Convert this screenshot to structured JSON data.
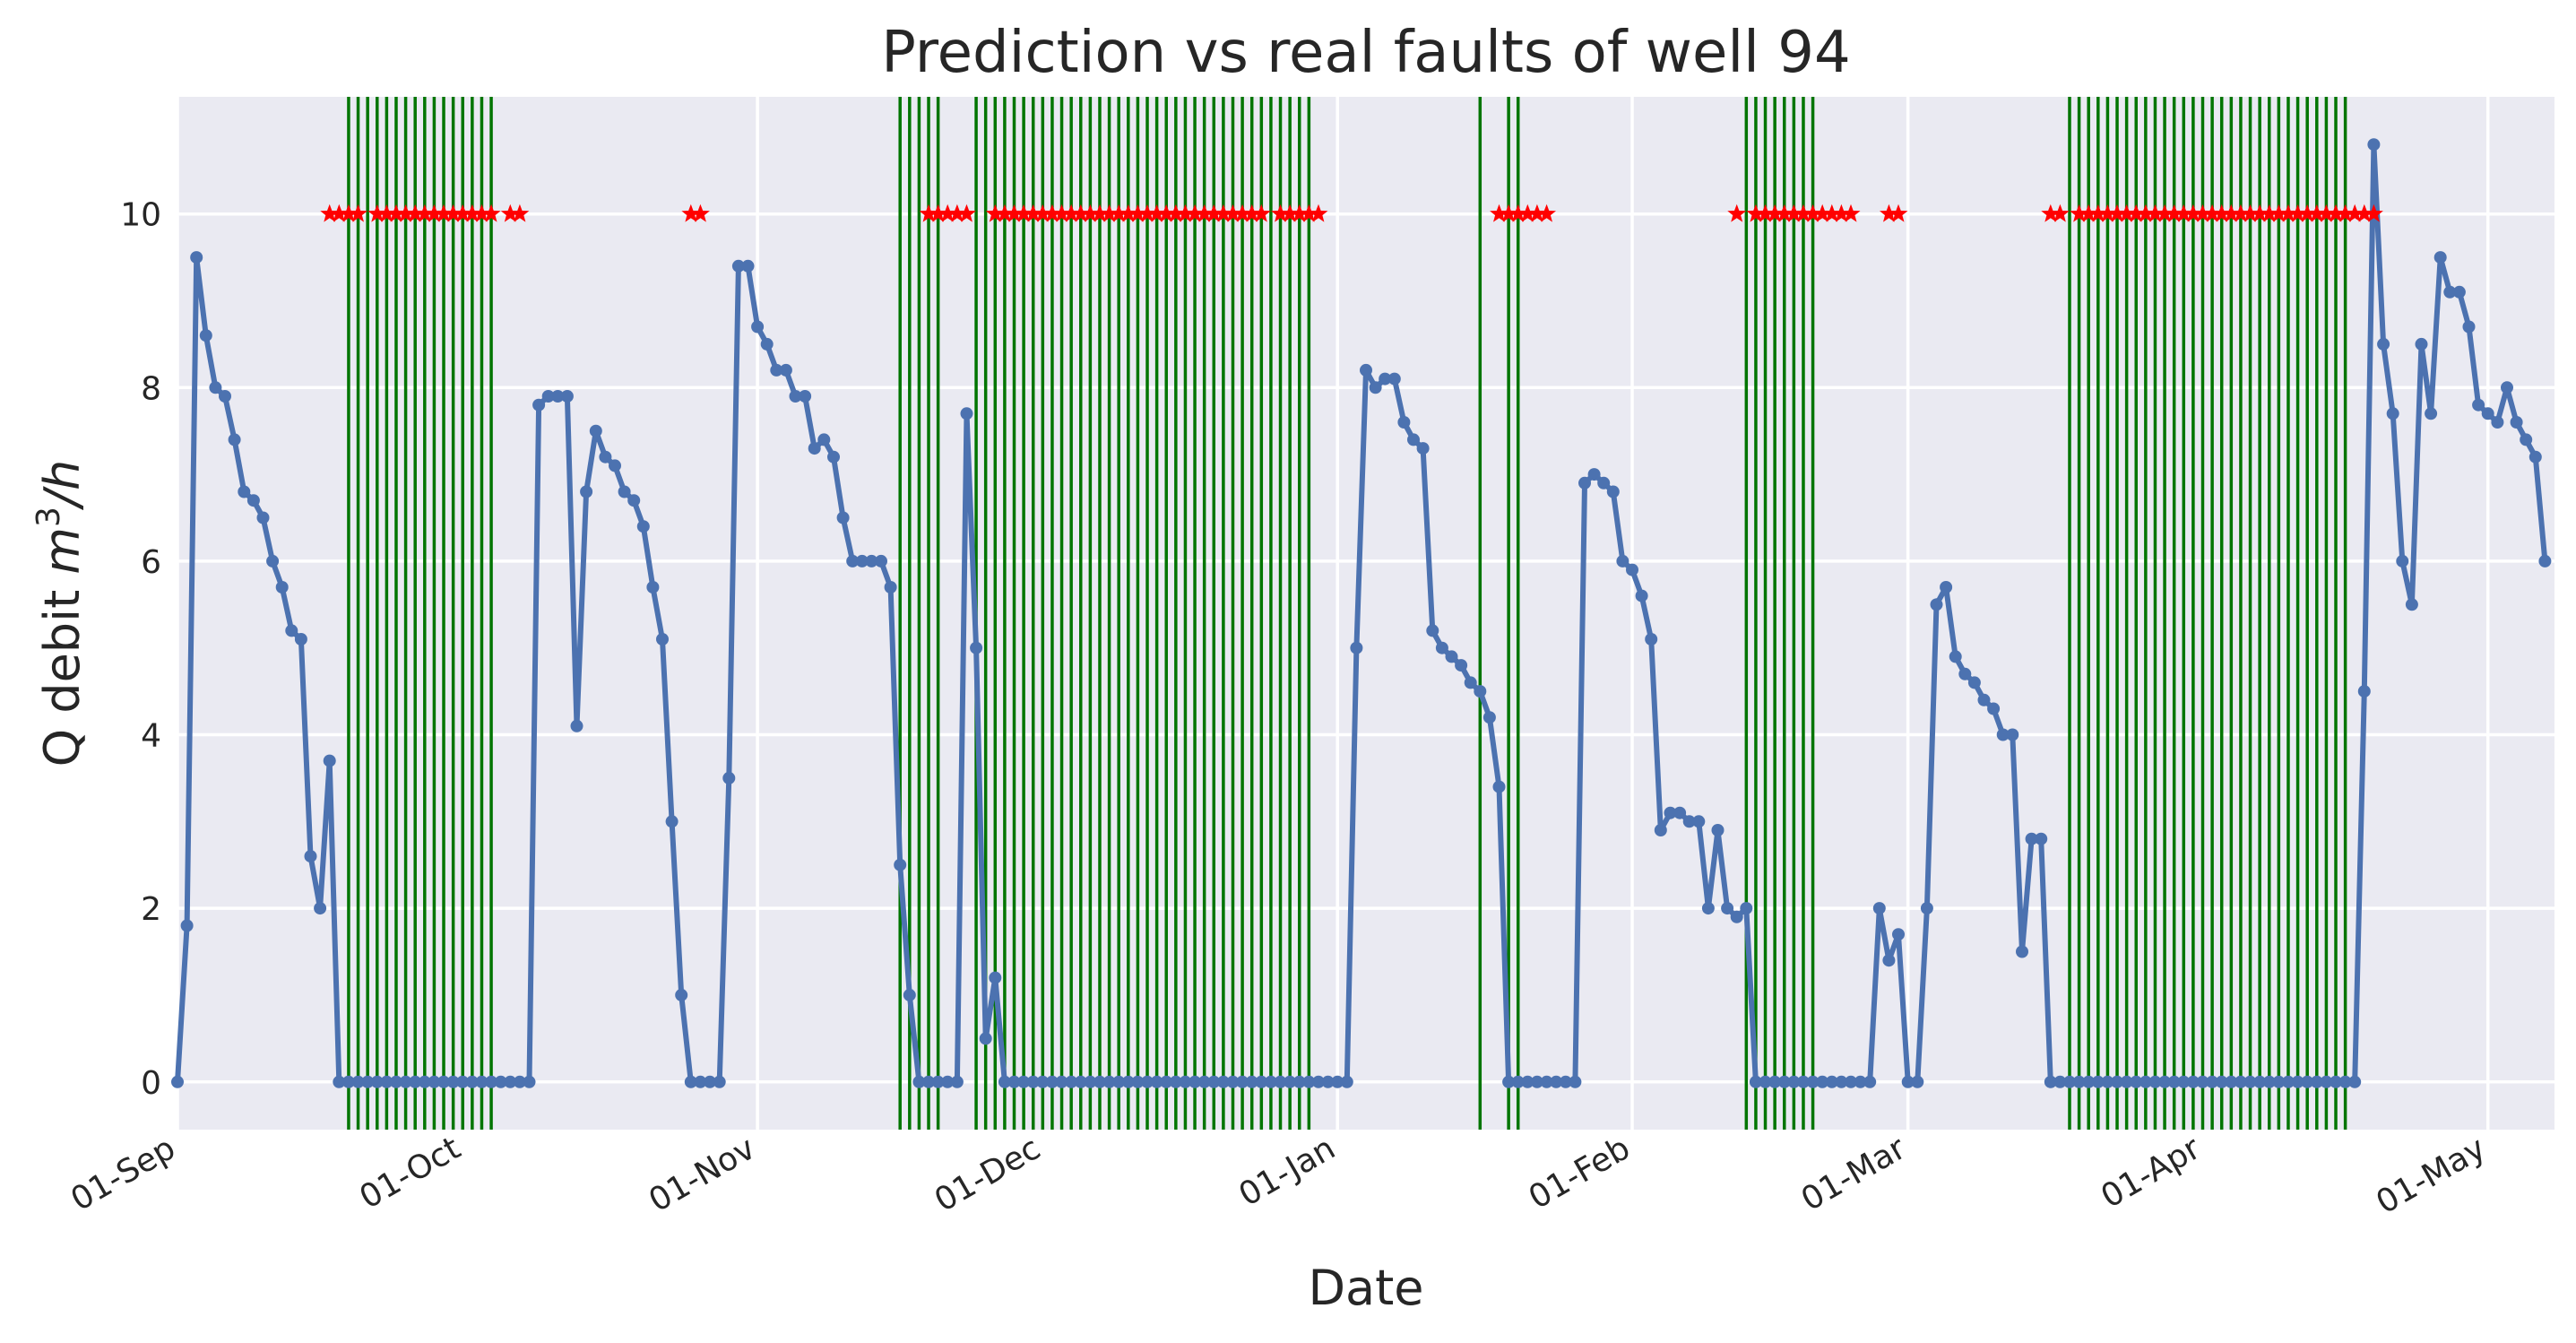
{
  "chart_data": {
    "type": "line",
    "title": "Prediction vs real faults of well 94",
    "xlabel": "Date",
    "ylabel": "Q debit m³/h",
    "ylabel_parts": {
      "text": "Q debit ",
      "unit_base_m": "m",
      "unit_exp": "3",
      "unit_rest": "/h"
    },
    "xlim": [
      "2019-09-01",
      "2020-05-08"
    ],
    "ylim": [
      -0.55,
      11.35
    ],
    "yticks": [
      0,
      2,
      4,
      6,
      8,
      10
    ],
    "xticks": [
      {
        "date": "2019-09-01",
        "label": "01-Sep"
      },
      {
        "date": "2019-10-01",
        "label": "01-Oct"
      },
      {
        "date": "2019-11-01",
        "label": "01-Nov"
      },
      {
        "date": "2019-12-01",
        "label": "01-Dec"
      },
      {
        "date": "2020-01-01",
        "label": "01-Jan"
      },
      {
        "date": "2020-02-01",
        "label": "01-Feb"
      },
      {
        "date": "2020-03-01",
        "label": "01-Mar"
      },
      {
        "date": "2020-04-01",
        "label": "01-Apr"
      },
      {
        "date": "2020-05-01",
        "label": "01-May"
      }
    ],
    "grid": true,
    "colors": {
      "background": "#eaeaf2",
      "line": "#4c72b0",
      "fault_lines": "#007500",
      "prediction_marks": "#ff0000"
    },
    "series": [
      {
        "start_date": "2019-09-01",
        "values": [
          0,
          1.8,
          9.5,
          8.6,
          8.0,
          7.9,
          7.4,
          6.8,
          6.7,
          6.5,
          6.0,
          5.7,
          5.2,
          5.1,
          2.6,
          2.0,
          3.7,
          0,
          0,
          0,
          0,
          0,
          0,
          0,
          0,
          0,
          0,
          0,
          0,
          0,
          0,
          0,
          0,
          0,
          0,
          0,
          0,
          0,
          7.8,
          7.9,
          7.9,
          7.9,
          4.1,
          6.8,
          7.5,
          7.2,
          7.1,
          6.8,
          6.7,
          6.4,
          5.7,
          5.1,
          3.0,
          1.0,
          0,
          0,
          0,
          0,
          3.5,
          9.4,
          9.4,
          8.7,
          8.5,
          8.2,
          8.2,
          7.9,
          7.9,
          7.3,
          7.4,
          7.2,
          6.5,
          6.0,
          6.0,
          6.0,
          6.0,
          5.7,
          2.5,
          1.0,
          0,
          0,
          0,
          0,
          0,
          7.7,
          5.0,
          0.5,
          1.2,
          0,
          0,
          0,
          0,
          0,
          0,
          0,
          0,
          0,
          0,
          0,
          0,
          0,
          0,
          0,
          0,
          0,
          0,
          0,
          0,
          0,
          0,
          0,
          0,
          0,
          0,
          0,
          0,
          0,
          0,
          0,
          0,
          0,
          0,
          0,
          0,
          0,
          5.0,
          8.2,
          8.0,
          8.1,
          8.1,
          7.6,
          7.4,
          7.3,
          5.2,
          5.0,
          4.9,
          4.8,
          4.6,
          4.5,
          4.2,
          3.4,
          0,
          0,
          0,
          0,
          0,
          0,
          0,
          0,
          6.9,
          7.0,
          6.9,
          6.8,
          6.0,
          5.9,
          5.6,
          5.1,
          2.9,
          3.1,
          3.1,
          3.0,
          3.0,
          2.0,
          2.9,
          2.0,
          1.9,
          2.0,
          0,
          0,
          0,
          0,
          0,
          0,
          0,
          0,
          0,
          0,
          0,
          0,
          0,
          2.0,
          1.4,
          1.7,
          0,
          0,
          2.0,
          5.5,
          5.7,
          4.9,
          4.7,
          4.6,
          4.4,
          4.3,
          4.0,
          4.0,
          1.5,
          2.8,
          2.8,
          0,
          0,
          0,
          0,
          0,
          0,
          0,
          0,
          0,
          0,
          0,
          0,
          0,
          0,
          0,
          0,
          0,
          0,
          0,
          0,
          0,
          0,
          0,
          0,
          0,
          0,
          0,
          0,
          0,
          0,
          0,
          0,
          0,
          4.5,
          10.8,
          8.5,
          7.7,
          6.0,
          5.5,
          8.5,
          7.7,
          9.5,
          9.1,
          9.1,
          8.7,
          7.8,
          7.7,
          7.6,
          8.0,
          7.6,
          7.4,
          7.2,
          6.0
        ]
      }
    ],
    "fault_periods": [
      {
        "start": "2019-09-19",
        "end": "2019-10-04"
      },
      {
        "start": "2019-11-16",
        "end": "2019-11-20"
      },
      {
        "start": "2019-11-24",
        "end": "2019-12-29"
      },
      {
        "start": "2020-01-16",
        "end": "2020-01-16"
      },
      {
        "start": "2020-01-19",
        "end": "2020-01-20"
      },
      {
        "start": "2020-02-13",
        "end": "2020-02-20"
      },
      {
        "start": "2020-03-18",
        "end": "2020-04-16"
      }
    ],
    "predictions": {
      "value": 10,
      "periods": [
        {
          "start": "2019-09-17",
          "end": "2019-09-20"
        },
        {
          "start": "2019-09-22",
          "end": "2019-10-04"
        },
        {
          "start": "2019-10-06",
          "end": "2019-10-07"
        },
        {
          "start": "2019-10-25",
          "end": "2019-10-26"
        },
        {
          "start": "2019-11-19",
          "end": "2019-11-23"
        },
        {
          "start": "2019-11-26",
          "end": "2019-12-24"
        },
        {
          "start": "2019-12-26",
          "end": "2019-12-30"
        },
        {
          "start": "2020-01-18",
          "end": "2020-01-23"
        },
        {
          "start": "2020-02-12",
          "end": "2020-02-12"
        },
        {
          "start": "2020-02-14",
          "end": "2020-02-24"
        },
        {
          "start": "2020-02-28",
          "end": "2020-02-29"
        },
        {
          "start": "2020-03-16",
          "end": "2020-03-17"
        },
        {
          "start": "2020-03-19",
          "end": "2020-04-19"
        }
      ]
    }
  }
}
